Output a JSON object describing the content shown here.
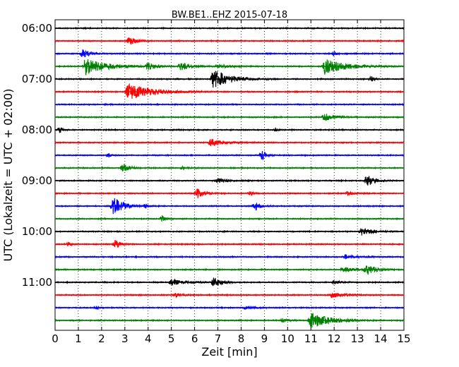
{
  "chart_data": {
    "type": "line",
    "title": "BW.BE1..EHZ 2015-07-18",
    "xlabel": "Zeit  [min]",
    "ylabel": "UTC (Lokalzeit = UTC + 02:00)",
    "xlim": [
      0,
      15
    ],
    "x_ticks": [
      "0",
      "1",
      "2",
      "3",
      "4",
      "5",
      "6",
      "7",
      "8",
      "9",
      "10",
      "11",
      "12",
      "13",
      "14",
      "15"
    ],
    "y_tick_labels": [
      "06:00",
      "07:00",
      "08:00",
      "09:00",
      "10:00",
      "11:00"
    ],
    "grid": true,
    "series_colors": [
      "#000000",
      "#ff0000",
      "#0000ff",
      "#008000"
    ],
    "traces": [
      {
        "start": "06:00",
        "events": []
      },
      {
        "start": "06:15",
        "events": [
          {
            "t": 3.2,
            "amp": 6,
            "dur": 0.25
          }
        ]
      },
      {
        "start": "06:30",
        "events": [
          {
            "t": 1.2,
            "amp": 6,
            "dur": 0.3
          },
          {
            "t": 12.0,
            "amp": 3,
            "dur": 0.1
          }
        ]
      },
      {
        "start": "06:45",
        "events": [
          {
            "t": 1.3,
            "amp": 12,
            "dur": 0.8
          },
          {
            "t": 4.0,
            "amp": 6,
            "dur": 0.3
          },
          {
            "t": 5.4,
            "amp": 6,
            "dur": 0.4
          },
          {
            "t": 7.0,
            "amp": 3,
            "dur": 0.5
          },
          {
            "t": 11.6,
            "amp": 12,
            "dur": 0.8
          }
        ]
      },
      {
        "start": "07:00",
        "events": [
          {
            "t": 6.8,
            "amp": 13,
            "dur": 0.7
          },
          {
            "t": 13.6,
            "amp": 4,
            "dur": 0.1
          }
        ]
      },
      {
        "start": "07:15",
        "events": [
          {
            "t": 3.15,
            "amp": 12,
            "dur": 0.9
          }
        ]
      },
      {
        "start": "07:30",
        "events": []
      },
      {
        "start": "07:45",
        "events": [
          {
            "t": 11.6,
            "amp": 6,
            "dur": 0.4
          }
        ]
      },
      {
        "start": "08:00",
        "events": [
          {
            "t": 0.2,
            "amp": 5,
            "dur": 0.1
          },
          {
            "t": 9.5,
            "amp": 2,
            "dur": 0.1
          }
        ]
      },
      {
        "start": "08:15",
        "events": [
          {
            "t": 6.7,
            "amp": 5,
            "dur": 0.5
          }
        ]
      },
      {
        "start": "08:30",
        "events": [
          {
            "t": 2.3,
            "amp": 3,
            "dur": 0.1
          },
          {
            "t": 8.9,
            "amp": 7,
            "dur": 0.15
          }
        ]
      },
      {
        "start": "08:45",
        "events": [
          {
            "t": 2.9,
            "amp": 6,
            "dur": 0.3
          },
          {
            "t": 5.5,
            "amp": 2,
            "dur": 0.2
          }
        ]
      },
      {
        "start": "09:00",
        "events": [
          {
            "t": 7.0,
            "amp": 3,
            "dur": 0.4
          },
          {
            "t": 13.4,
            "amp": 9,
            "dur": 0.3
          }
        ]
      },
      {
        "start": "09:15",
        "events": [
          {
            "t": 6.1,
            "amp": 7,
            "dur": 0.3
          },
          {
            "t": 8.4,
            "amp": 4,
            "dur": 0.1
          },
          {
            "t": 12.6,
            "amp": 3,
            "dur": 0.2
          }
        ]
      },
      {
        "start": "09:30",
        "events": [
          {
            "t": 2.5,
            "amp": 13,
            "dur": 0.4
          },
          {
            "t": 3.9,
            "amp": 3,
            "dur": 0.1
          },
          {
            "t": 8.6,
            "amp": 6,
            "dur": 0.2
          }
        ]
      },
      {
        "start": "09:45",
        "events": [
          {
            "t": 4.6,
            "amp": 4,
            "dur": 0.15
          }
        ]
      },
      {
        "start": "10:00",
        "events": [
          {
            "t": 13.2,
            "amp": 6,
            "dur": 0.4
          }
        ]
      },
      {
        "start": "10:15",
        "events": [
          {
            "t": 0.6,
            "amp": 3,
            "dur": 0.1
          },
          {
            "t": 2.6,
            "amp": 6,
            "dur": 0.2
          }
        ]
      },
      {
        "start": "10:30",
        "events": [
          {
            "t": 12.5,
            "amp": 3,
            "dur": 0.5
          }
        ]
      },
      {
        "start": "10:45",
        "events": [
          {
            "t": 12.4,
            "amp": 3,
            "dur": 0.6
          },
          {
            "t": 13.4,
            "amp": 8,
            "dur": 0.35
          }
        ]
      },
      {
        "start": "11:00",
        "events": [
          {
            "t": 5.0,
            "amp": 4,
            "dur": 0.6
          },
          {
            "t": 6.8,
            "amp": 7,
            "dur": 0.3
          },
          {
            "t": 12.0,
            "amp": 2,
            "dur": 0.3
          }
        ]
      },
      {
        "start": "11:15",
        "events": [
          {
            "t": 5.2,
            "amp": 3,
            "dur": 0.2
          },
          {
            "t": 11.9,
            "amp": 4,
            "dur": 0.5
          }
        ]
      },
      {
        "start": "11:30",
        "events": [
          {
            "t": 1.8,
            "amp": 2,
            "dur": 0.1
          },
          {
            "t": 8.2,
            "amp": 2,
            "dur": 0.3
          }
        ]
      },
      {
        "start": "11:45",
        "events": [
          {
            "t": 9.8,
            "amp": 3,
            "dur": 0.2
          },
          {
            "t": 11.0,
            "amp": 12,
            "dur": 0.7
          }
        ]
      }
    ]
  }
}
